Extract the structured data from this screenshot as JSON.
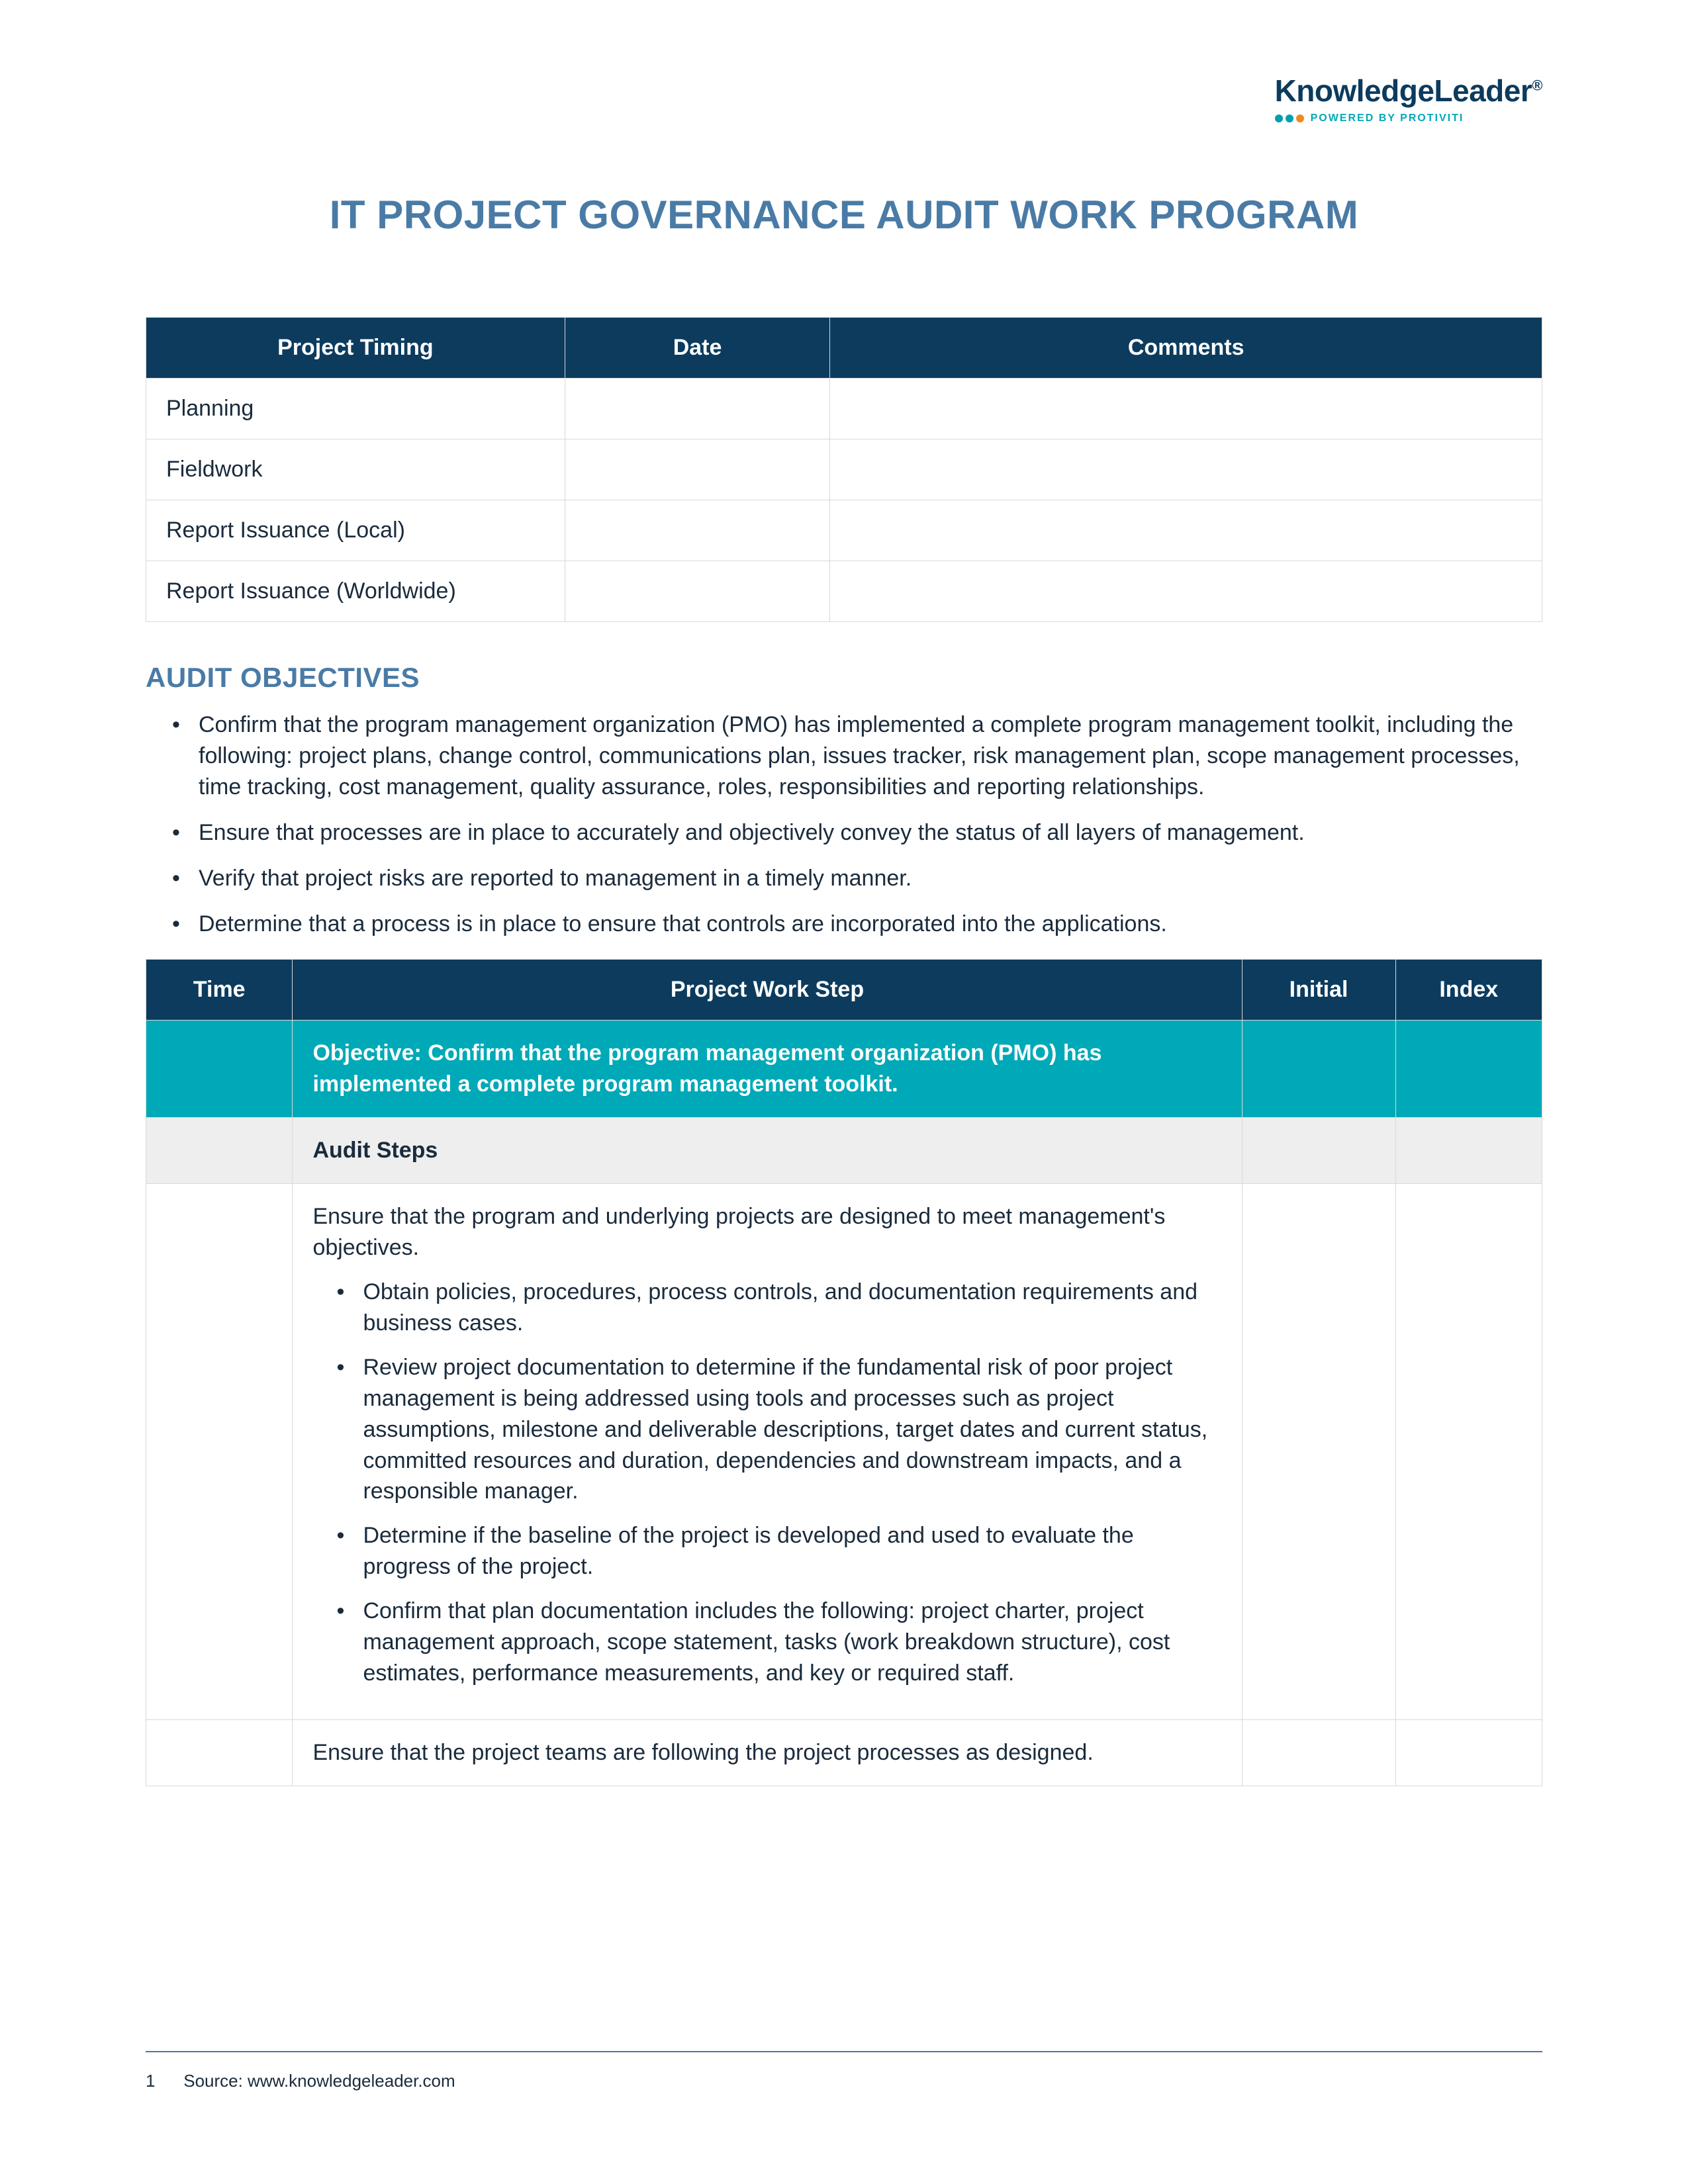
{
  "logo": {
    "brand": "KnowledgeLeader",
    "registered": "®",
    "tagline": "POWERED BY PROTIVITI",
    "dot_colors": [
      "#009fb0",
      "#009fb0",
      "#f08a1d"
    ]
  },
  "title": "IT PROJECT GOVERNANCE AUDIT WORK PROGRAM",
  "timing_table": {
    "headers": [
      "Project Timing",
      "Date",
      "Comments"
    ],
    "rows": [
      {
        "label": "Planning",
        "date": "",
        "comments": ""
      },
      {
        "label": "Fieldwork",
        "date": "",
        "comments": ""
      },
      {
        "label": "Report Issuance (Local)",
        "date": "",
        "comments": ""
      },
      {
        "label": "Report Issuance (Worldwide)",
        "date": "",
        "comments": ""
      }
    ],
    "header_bg": "#0c3b5e",
    "header_color": "#ffffff",
    "border_color": "#d9d9d9"
  },
  "objectives": {
    "heading": "AUDIT OBJECTIVES",
    "items": [
      "Confirm that the program management organization (PMO) has implemented a complete program management toolkit, including the following: project plans, change control, communications plan, issues tracker, risk management plan, scope management processes, time tracking, cost management, quality assurance, roles, responsibilities and reporting relationships.",
      "Ensure that processes are in place to accurately and objectively convey the status of all layers of management.",
      "Verify that project risks are reported to management in a timely manner.",
      "Determine that a process is in place to ensure that controls are incorporated into the applications."
    ]
  },
  "work_table": {
    "headers": [
      "Time",
      "Project Work Step",
      "Initial",
      "Index"
    ],
    "objective_row": "Objective: Confirm that the program management organization (PMO) has implemented a complete program management toolkit.",
    "steps_label": "Audit Steps",
    "step1": {
      "intro": "Ensure that the program and underlying projects are designed to meet management's objectives.",
      "bullets": [
        "Obtain policies, procedures, process controls, and documentation requirements and business cases.",
        "Review project documentation to determine if the fundamental risk of poor project management is being addressed using tools and processes such as project assumptions, milestone and deliverable descriptions, target dates and current status, committed resources and duration, dependencies and downstream impacts, and a responsible manager.",
        "Determine if the baseline of the project is developed and used to evaluate the progress of the project.",
        "Confirm that plan documentation includes the following: project charter, project management approach, scope statement, tasks (work breakdown structure), cost estimates, performance measurements, and key or required staff."
      ]
    },
    "step2": "Ensure that the project teams are following the project processes as designed.",
    "header_bg": "#0c3b5e",
    "objective_bg": "#00a9b7",
    "steps_bg": "#eeeeee"
  },
  "footer": {
    "page": "1",
    "source": "Source: www.knowledgeleader.com",
    "line_color": "#4a7ba6"
  },
  "colors": {
    "title_color": "#4a7ba6",
    "body_text": "#1a2b3c",
    "background": "#ffffff"
  }
}
